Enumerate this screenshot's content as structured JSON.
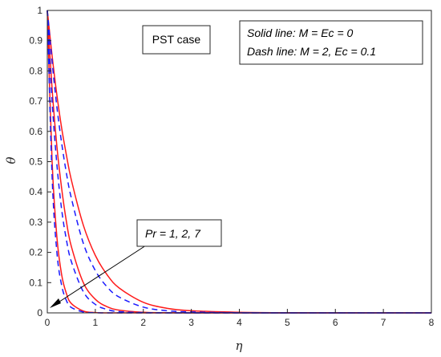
{
  "chart_data": {
    "type": "line",
    "xlabel": "η",
    "ylabel": "θ",
    "xlim": [
      0,
      8
    ],
    "ylim": [
      0,
      1
    ],
    "x_ticks": [
      "0",
      "1",
      "2",
      "3",
      "4",
      "5",
      "6",
      "7",
      "8"
    ],
    "y_ticks": [
      "0",
      "0.1",
      "0.2",
      "0.3",
      "0.4",
      "0.5",
      "0.6",
      "0.7",
      "0.8",
      "0.9",
      "1"
    ],
    "grid": false,
    "annotations": {
      "case_label": "PST case",
      "legend_line1": "Solid line: M = Ec = 0",
      "legend_line2": "Dash line: M = 2, Ec = 0.1",
      "arrow_label": "Pr = 1, 2, 7"
    },
    "colors": {
      "solid": "#ff1a1a",
      "dashed": "#1a1aff",
      "arrow": "#000000"
    },
    "x": [
      0,
      0.1,
      0.2,
      0.3,
      0.4,
      0.5,
      0.75,
      1.0,
      1.25,
      1.5,
      2.0,
      2.5,
      3.0,
      4.0,
      5.0,
      6.0,
      8.0
    ],
    "series": [
      {
        "style": "solid",
        "pr": 1,
        "values": [
          1.0,
          0.85,
          0.72,
          0.61,
          0.52,
          0.44,
          0.29,
          0.19,
          0.125,
          0.082,
          0.035,
          0.015,
          0.007,
          0.002,
          0.0005,
          0.0001,
          0.0
        ]
      },
      {
        "style": "solid",
        "pr": 2,
        "values": [
          1.0,
          0.74,
          0.55,
          0.41,
          0.3,
          0.22,
          0.1,
          0.045,
          0.02,
          0.009,
          0.002,
          0.0005,
          0.0001,
          0.0,
          0.0,
          0.0,
          0.0
        ]
      },
      {
        "style": "solid",
        "pr": 7,
        "values": [
          1.0,
          0.5,
          0.25,
          0.125,
          0.063,
          0.031,
          0.006,
          0.001,
          0.0,
          0.0,
          0.0,
          0.0,
          0.0,
          0.0,
          0.0,
          0.0,
          0.0
        ]
      },
      {
        "style": "dashed",
        "pr": 1,
        "values": [
          1.0,
          0.83,
          0.68,
          0.56,
          0.46,
          0.38,
          0.23,
          0.14,
          0.085,
          0.052,
          0.019,
          0.007,
          0.003,
          0.0005,
          0.0001,
          0.0,
          0.0
        ]
      },
      {
        "style": "dashed",
        "pr": 2,
        "values": [
          1.0,
          0.7,
          0.49,
          0.34,
          0.24,
          0.17,
          0.07,
          0.028,
          0.011,
          0.004,
          0.001,
          0.0001,
          0.0,
          0.0,
          0.0,
          0.0,
          0.0
        ]
      },
      {
        "style": "dashed",
        "pr": 7,
        "values": [
          1.0,
          0.45,
          0.2,
          0.09,
          0.04,
          0.018,
          0.003,
          0.0004,
          0.0,
          0.0,
          0.0,
          0.0,
          0.0,
          0.0,
          0.0,
          0.0,
          0.0
        ]
      }
    ]
  }
}
